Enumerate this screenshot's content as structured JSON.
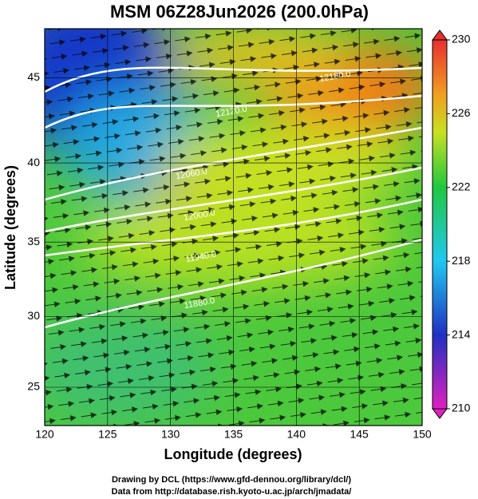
{
  "title": "MSM 06Z28Jun2026 (200.0hPa)",
  "x_axis": {
    "label": "Longitude (degrees)",
    "lim": [
      120,
      150
    ],
    "ticks": [
      120,
      125,
      130,
      135,
      140,
      145,
      150
    ]
  },
  "y_axis": {
    "label": "Latitude  (degrees)",
    "lim": [
      22.2,
      47.7
    ],
    "ticks": [
      25,
      30,
      35,
      40,
      45
    ],
    "projection": "mercator"
  },
  "colorbar": {
    "lim": [
      210,
      230
    ],
    "ticks": [
      210,
      214,
      218,
      222,
      226,
      230
    ]
  },
  "contour_labels": [
    "12180.0",
    "12120.0",
    "12060.0",
    "12000.0",
    "11940.0",
    "11880.0"
  ],
  "credits": [
    "Drawing by DCL (https://www.gfd-dennou.org/library/dcl/)",
    "Data from http://database.rish.kyoto-u.ac.jp/arch/jmadata/"
  ]
}
